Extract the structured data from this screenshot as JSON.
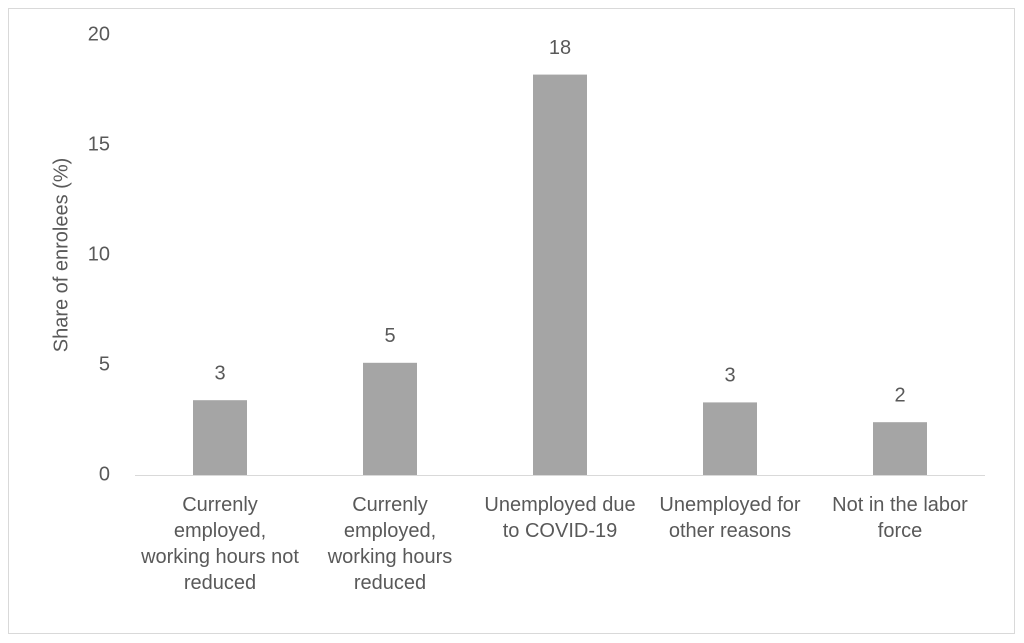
{
  "chart_data": {
    "type": "bar",
    "y_label": "Share of enrolees (%)",
    "categories": [
      "Currenly employed, working hours not reduced",
      "Currenly employed, working hours reduced",
      "Unemployed due to COVID-19",
      "Unemployed for other reasons",
      "Not in the labor force"
    ],
    "values": [
      3.4,
      5.1,
      18.2,
      3.3,
      2.4
    ],
    "value_labels": [
      "3",
      "5",
      "18",
      "3",
      "2"
    ],
    "color": "#a5a5a5",
    "ylim": [
      0,
      20
    ],
    "yticks": [
      0,
      5,
      10,
      15,
      20
    ],
    "grid": false
  }
}
